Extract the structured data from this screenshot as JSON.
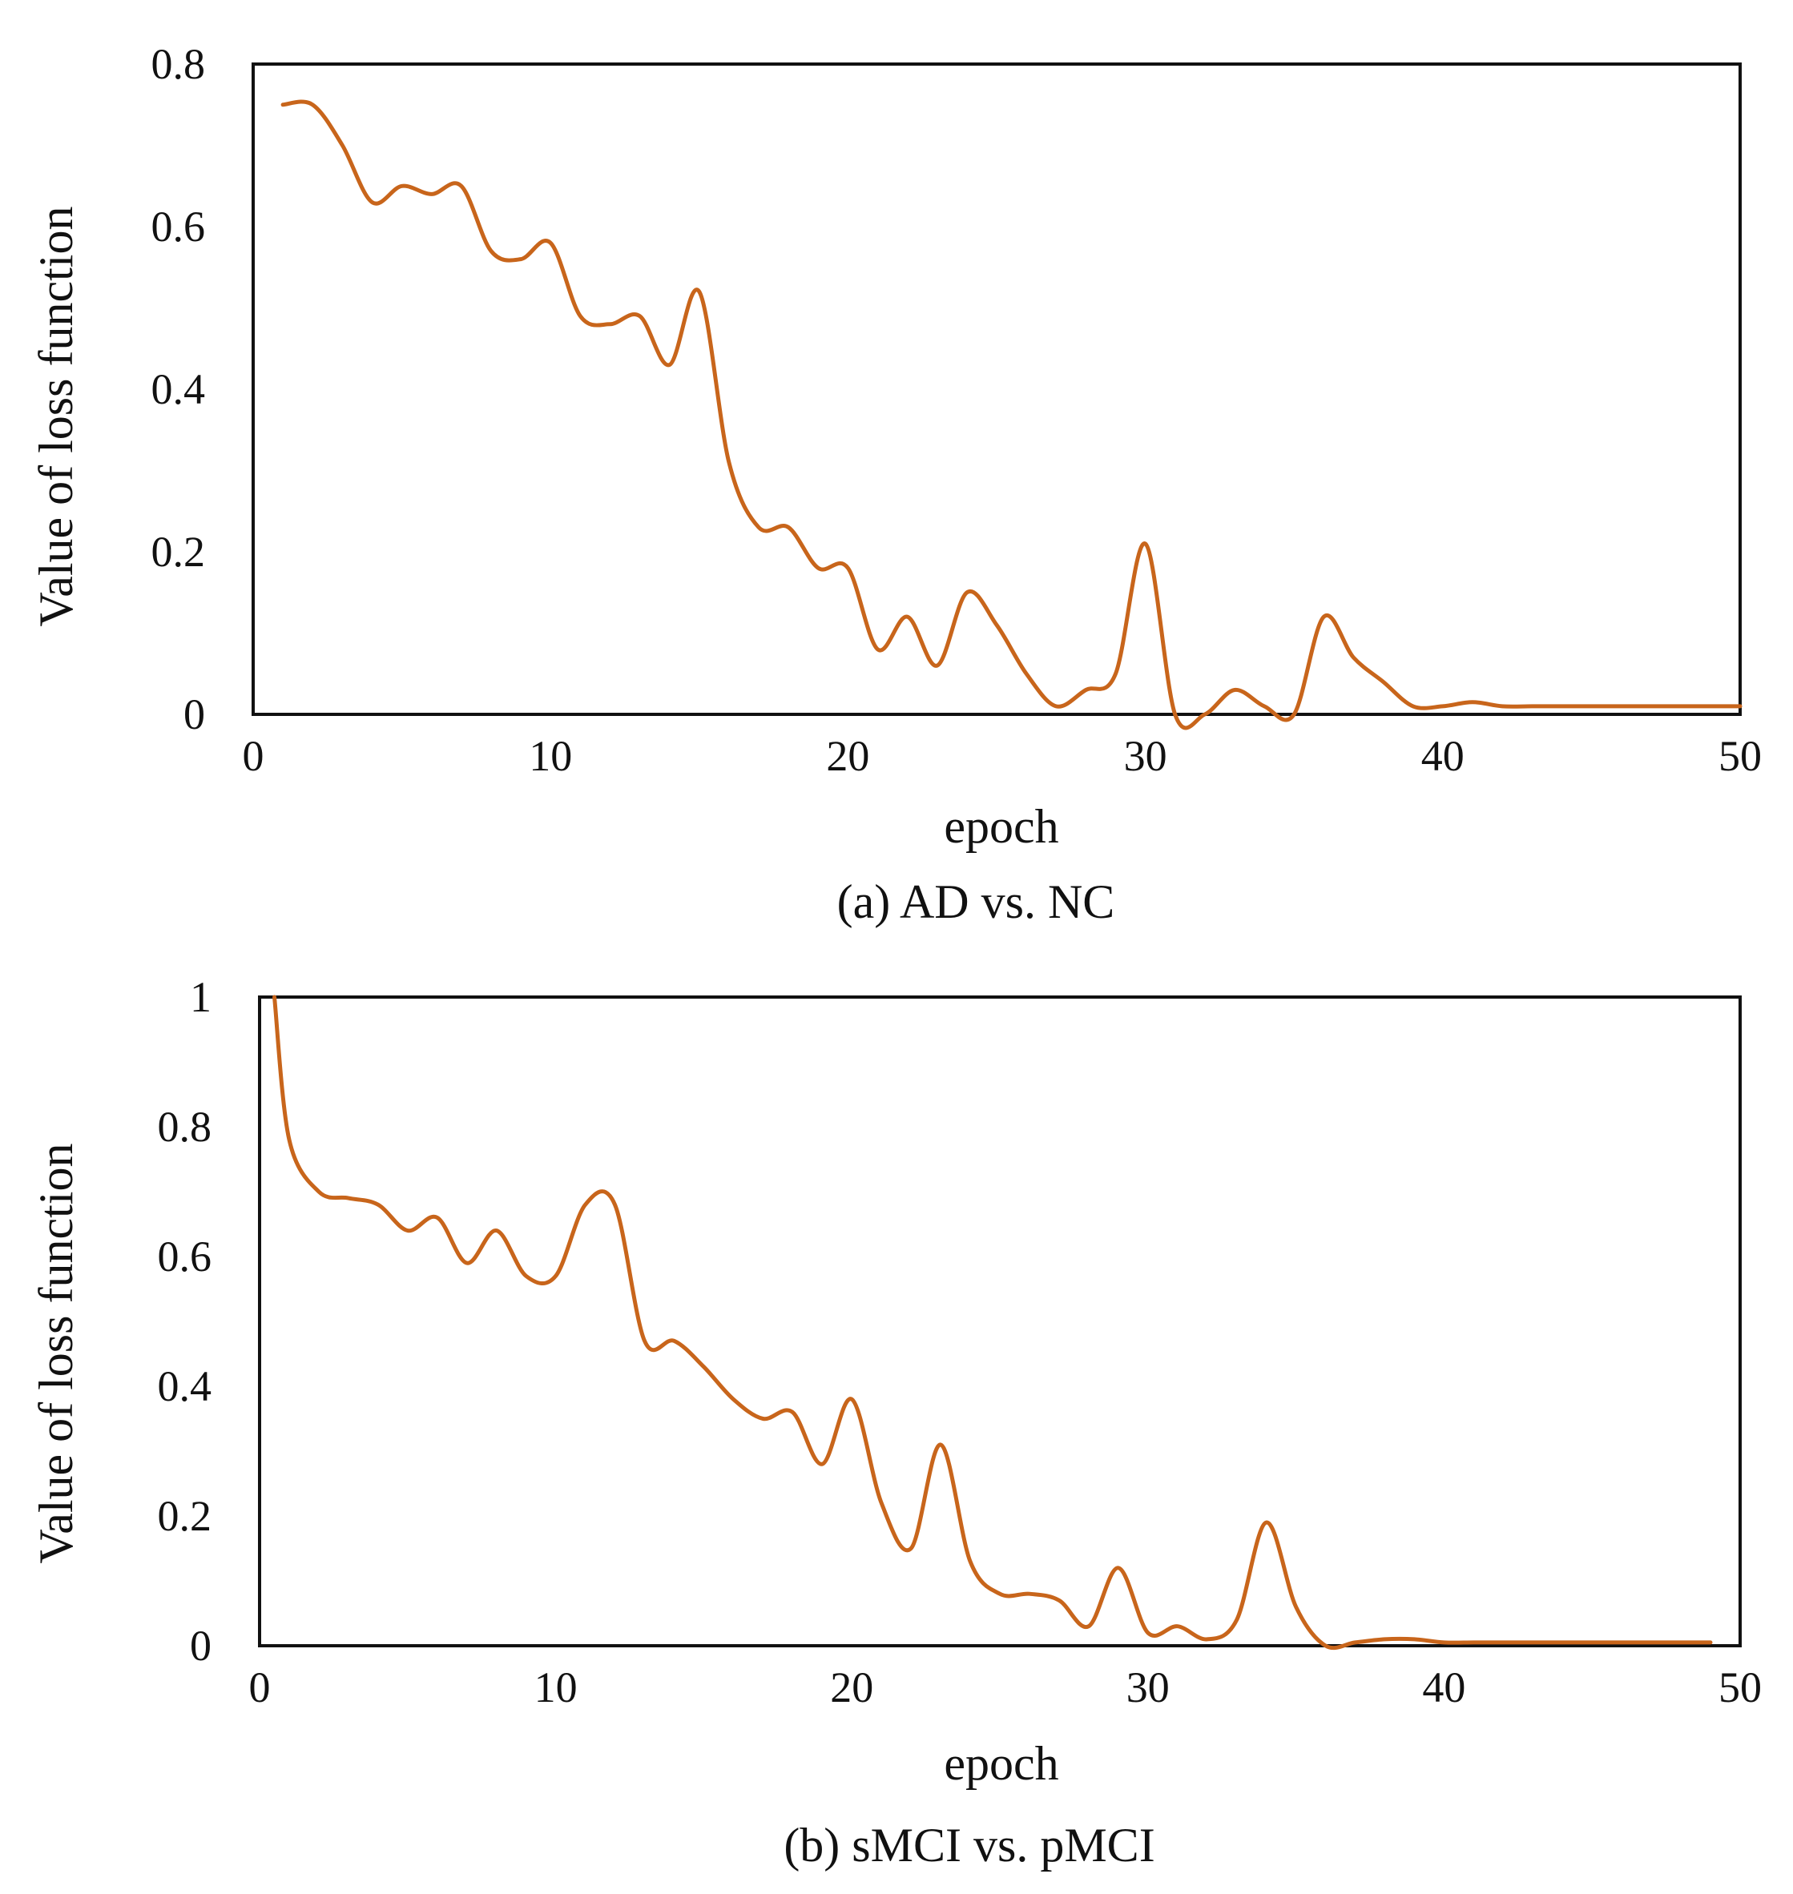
{
  "chart_data": [
    {
      "type": "line",
      "caption": "(a) AD vs. NC",
      "xlabel": "epoch",
      "ylabel": "Value of loss function",
      "xlim": [
        0,
        50
      ],
      "ylim": [
        0,
        0.8
      ],
      "xticks": [
        "0",
        "10",
        "20",
        "30",
        "40",
        "50"
      ],
      "yticks": [
        "0",
        "0.2",
        "0.4",
        "0.6",
        "0.8"
      ],
      "color": "#c8651b",
      "series": [
        {
          "name": "loss",
          "x": [
            1,
            2,
            3,
            4,
            5,
            6,
            7,
            8,
            9,
            10,
            11,
            12,
            13,
            14,
            15,
            16,
            17,
            18,
            19,
            20,
            21,
            22,
            23,
            24,
            25,
            26,
            27,
            28,
            29,
            30,
            31,
            32,
            33,
            34,
            35,
            36,
            37,
            38,
            39,
            40,
            41,
            42,
            43,
            44,
            45,
            46,
            47,
            48,
            49,
            50
          ],
          "values": [
            0.75,
            0.75,
            0.7,
            0.63,
            0.65,
            0.64,
            0.65,
            0.57,
            0.56,
            0.58,
            0.49,
            0.48,
            0.49,
            0.43,
            0.52,
            0.31,
            0.23,
            0.23,
            0.18,
            0.18,
            0.08,
            0.12,
            0.06,
            0.15,
            0.11,
            0.05,
            0.01,
            0.03,
            0.05,
            0.21,
            0.0,
            0.0,
            0.03,
            0.01,
            0.0,
            0.12,
            0.07,
            0.04,
            0.01,
            0.01,
            0.015,
            0.01,
            0.01,
            0.01,
            0.01,
            0.01,
            0.01,
            0.01,
            0.01,
            0.01
          ]
        }
      ]
    },
    {
      "type": "line",
      "caption": "(b) sMCI vs. pMCI",
      "xlabel": "epoch",
      "ylabel": "Value of loss function",
      "xlim": [
        0,
        50
      ],
      "ylim": [
        0,
        1
      ],
      "xticks": [
        "0",
        "10",
        "20",
        "30",
        "40",
        "50"
      ],
      "yticks": [
        "0",
        "0.2",
        "0.4",
        "0.6",
        "0.8",
        "1"
      ],
      "color": "#c8651b",
      "series": [
        {
          "name": "loss",
          "x": [
            0.5,
            1,
            2,
            3,
            4,
            5,
            6,
            7,
            8,
            9,
            10,
            11,
            12,
            13,
            14,
            15,
            16,
            17,
            18,
            19,
            20,
            21,
            22,
            23,
            24,
            25,
            26,
            27,
            28,
            29,
            30,
            31,
            32,
            33,
            34,
            35,
            36,
            37,
            38,
            39,
            40,
            41,
            42,
            43,
            44,
            45,
            46,
            47,
            48,
            49
          ],
          "values": [
            1.0,
            0.78,
            0.7,
            0.69,
            0.68,
            0.64,
            0.66,
            0.59,
            0.64,
            0.57,
            0.57,
            0.68,
            0.68,
            0.47,
            0.47,
            0.43,
            0.38,
            0.35,
            0.36,
            0.28,
            0.38,
            0.22,
            0.15,
            0.31,
            0.13,
            0.08,
            0.08,
            0.07,
            0.03,
            0.12,
            0.02,
            0.03,
            0.01,
            0.04,
            0.19,
            0.06,
            0.0,
            0.005,
            0.01,
            0.01,
            0.005,
            0.005,
            0.005,
            0.005,
            0.005,
            0.005,
            0.005,
            0.005,
            0.005,
            0.005
          ]
        }
      ]
    }
  ]
}
